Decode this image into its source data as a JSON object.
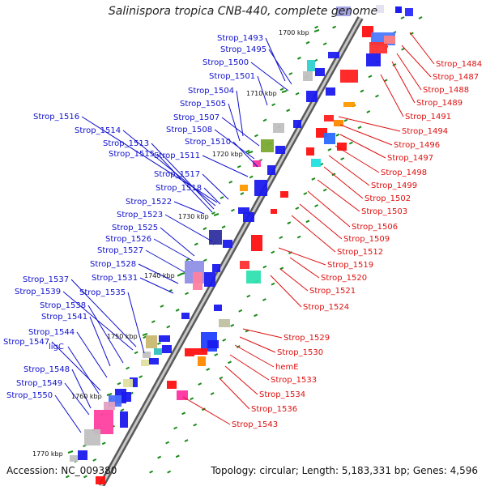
{
  "title": "Salinispora tropica CNB-440, complete genome",
  "footer": {
    "accession": "Accession: NC_009380",
    "topology": "Topology: circular; Length: 5,183,331 bp; Genes: 4,596"
  },
  "colors": {
    "left_label": "#1010cc",
    "right_label": "#dd1010",
    "kbp_tick": "#1a8a1a",
    "backbone": "#8a8a8a"
  },
  "kbp_marks": [
    "1700 kbp",
    "1710 kbp",
    "1720 kbp",
    "1730 kbp",
    "1740 kbp",
    "1750 kbp",
    "1760 kbp",
    "1770 kbp"
  ],
  "left_labels": [
    "Strop_1493",
    "Strop_1495",
    "Strop_1500",
    "Strop_1501",
    "Strop_1504",
    "Strop_1505",
    "Strop_1507",
    "Strop_1508",
    "Strop_1510",
    "Strop_1511",
    "Strop_1516",
    "Strop_1514",
    "Strop_1513",
    "Strop_1515",
    "Strop_1517",
    "Strop_1518",
    "Strop_1522",
    "Strop_1523",
    "Strop_1525",
    "Strop_1526",
    "Strop_1527",
    "Strop_1528",
    "Strop_1531",
    "Strop_1537",
    "Strop_1535",
    "Strop_1539",
    "Strop_1538",
    "Strop_1541",
    "Strop_1544",
    "Strop_1547",
    "ligC",
    "Strop_1548",
    "Strop_1549",
    "Strop_1550"
  ],
  "right_labels": [
    "Strop_1484",
    "Strop_1487",
    "Strop_1488",
    "Strop_1489",
    "Strop_1491",
    "Strop_1494",
    "Strop_1496",
    "Strop_1497",
    "Strop_1498",
    "Strop_1499",
    "Strop_1502",
    "Strop_1503",
    "Strop_1506",
    "Strop_1509",
    "Strop_1512",
    "Strop_1519",
    "Strop_1520",
    "Strop_1521",
    "Strop_1524",
    "Strop_1529",
    "Strop_1530",
    "hemE",
    "Strop_1533",
    "Strop_1534",
    "Strop_1536",
    "Strop_1543"
  ]
}
